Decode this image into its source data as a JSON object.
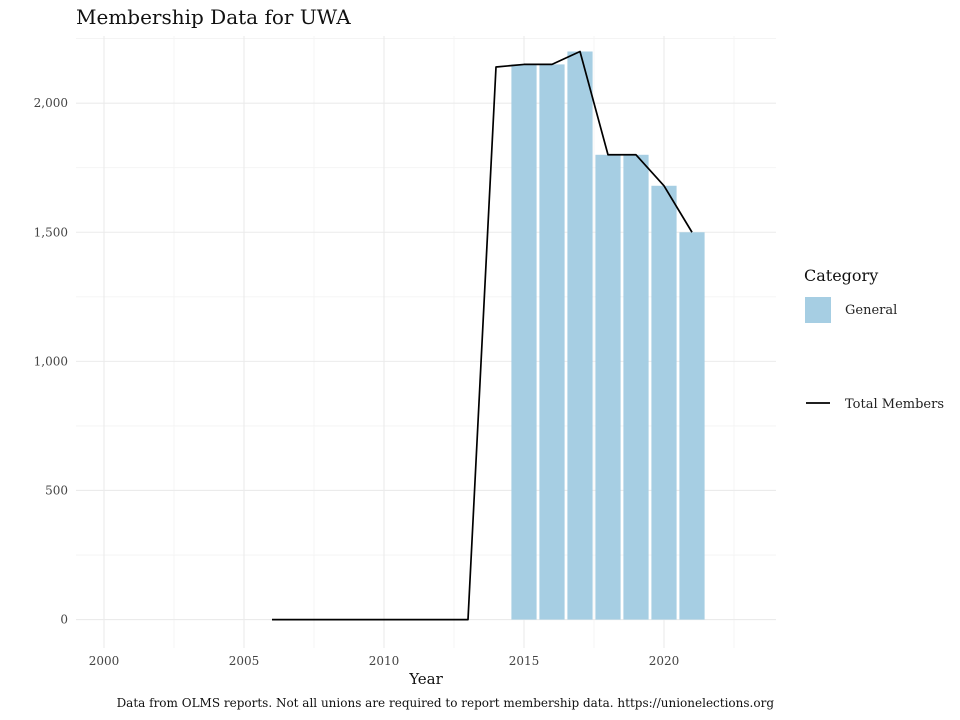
{
  "chart_data": {
    "type": "bar",
    "title": "Membership Data for UWA",
    "xlabel": "Year",
    "ylabel": "",
    "xlim": [
      1999.0,
      2024.0
    ],
    "ylim": [
      -110,
      2260
    ],
    "x_ticks": [
      2000,
      2005,
      2010,
      2015,
      2020
    ],
    "x_tick_labels": [
      "2000",
      "2005",
      "2010",
      "2015",
      "2020"
    ],
    "y_ticks": [
      0,
      500,
      1000,
      1500,
      2000
    ],
    "y_tick_labels": [
      "0",
      "500",
      "1,000",
      "1,500",
      "2,000"
    ],
    "grid": true,
    "legend": {
      "title": "Category",
      "position": "right",
      "bar_label": "General",
      "line_label": "Total Members"
    },
    "bar_color": "#a6cee3",
    "line_color": "#000000",
    "bars": {
      "name": "General",
      "x": [
        2015,
        2016,
        2017,
        2018,
        2019,
        2020,
        2021
      ],
      "values": [
        2150,
        2150,
        2200,
        1800,
        1800,
        1680,
        1500
      ]
    },
    "line": {
      "name": "Total Members",
      "x": [
        2006,
        2007,
        2008,
        2009,
        2010,
        2011,
        2012,
        2013,
        2014,
        2015,
        2016,
        2017,
        2018,
        2019,
        2020,
        2021
      ],
      "values": [
        0,
        0,
        0,
        0,
        0,
        0,
        0,
        0,
        2140,
        2150,
        2150,
        2200,
        1800,
        1800,
        1680,
        1500
      ]
    },
    "caption": "Data from OLMS reports. Not all unions are required to report membership data. https://unionelections.org"
  }
}
